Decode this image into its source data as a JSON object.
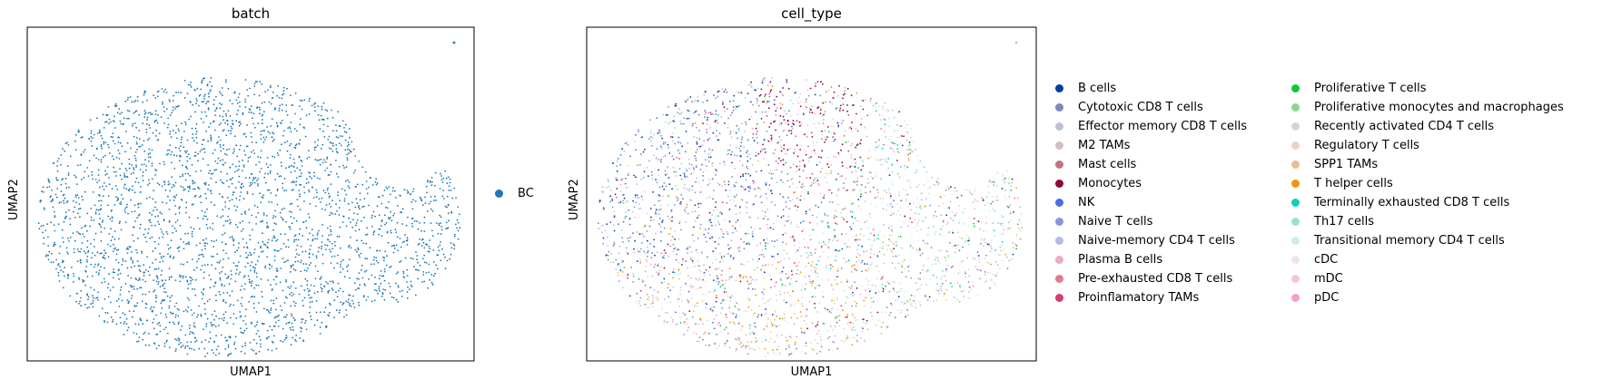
{
  "chart_data": [
    {
      "type": "scatter",
      "title": "batch",
      "xlabel": "UMAP1",
      "ylabel": "UMAP2",
      "grid": false,
      "legend_position": "right",
      "series": [
        {
          "name": "BC",
          "color": "#1f77b4"
        }
      ]
    },
    {
      "type": "scatter",
      "title": "cell_type",
      "xlabel": "UMAP1",
      "ylabel": "UMAP2",
      "grid": false,
      "legend_position": "right",
      "series": [
        {
          "name": "B cells",
          "color": "#023fa5"
        },
        {
          "name": "Cytotoxic CD8 T cells",
          "color": "#7d87b9"
        },
        {
          "name": "Effector memory CD8 T cells",
          "color": "#bec1d4"
        },
        {
          "name": "M2 TAMs",
          "color": "#d6bcc0"
        },
        {
          "name": "Mast cells",
          "color": "#bb7784"
        },
        {
          "name": "Monocytes",
          "color": "#8e063b"
        },
        {
          "name": "NK",
          "color": "#4a6fe3"
        },
        {
          "name": "Naive T cells",
          "color": "#8595e1"
        },
        {
          "name": "Naive-memory CD4 T cells",
          "color": "#b5bbe3"
        },
        {
          "name": "Plasma B cells",
          "color": "#e6afb9"
        },
        {
          "name": "Pre-exhausted CD8 T cells",
          "color": "#e07b91"
        },
        {
          "name": "Proinflamatory TAMs",
          "color": "#d33f6a"
        },
        {
          "name": "Proliferative T cells",
          "color": "#11c638"
        },
        {
          "name": "Proliferative monocytes and macrophages",
          "color": "#8dd593"
        },
        {
          "name": "Recently activated CD4 T cells",
          "color": "#c6dec7"
        },
        {
          "name": "Regulatory T cells",
          "color": "#ead3c6"
        },
        {
          "name": "SPP1 TAMs",
          "color": "#f0b98d"
        },
        {
          "name": "T helper cells",
          "color": "#ef9708"
        },
        {
          "name": "Terminally exhausted CD8 T cells",
          "color": "#0fcfc0"
        },
        {
          "name": "Th17 cells",
          "color": "#9cded6"
        },
        {
          "name": "Transitional memory CD4 T cells",
          "color": "#d5eae7"
        },
        {
          "name": "cDC",
          "color": "#f3e1eb"
        },
        {
          "name": "mDC",
          "color": "#f6c4e1"
        },
        {
          "name": "pDC",
          "color": "#f79cd4"
        }
      ]
    }
  ]
}
